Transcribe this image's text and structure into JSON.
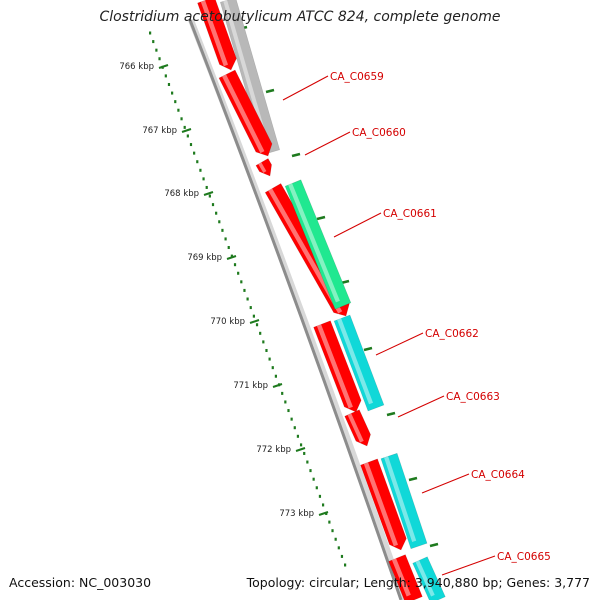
{
  "title": "Clostridium acetobutylicum ATCC 824, complete genome",
  "footer": {
    "accession": "Accession: NC_003030",
    "topology": "Topology: circular; Length: 3,940,880 bp; Genes: 3,777"
  },
  "kbp_labels": [
    "766 kbp",
    "767 kbp",
    "768 kbp",
    "769 kbp",
    "770 kbp",
    "771 kbp",
    "772 kbp",
    "773 kbp"
  ],
  "gene_labels": [
    "CA_C0659",
    "CA_C0660",
    "CA_C0661",
    "CA_C0662",
    "CA_C0663",
    "CA_C0664",
    "CA_C0665"
  ],
  "colors": {
    "cds": "#ff0000",
    "teal": "#10d8d8",
    "green": "#20e890",
    "gray": "#b8b8b8",
    "backbone": "#8c8c8c",
    "ticks": "#1e7a1e",
    "label": "#d40000"
  }
}
